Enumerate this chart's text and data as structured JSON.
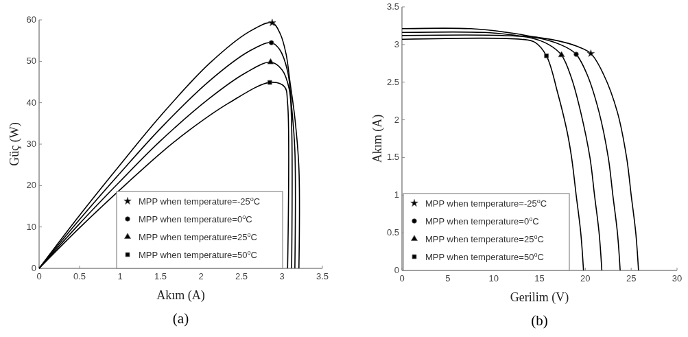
{
  "chart_data": [
    {
      "type": "line",
      "xlabel": "Akım (A)",
      "ylabel": "Güç (W)",
      "annotations": [
        "(a)"
      ],
      "xlim": [
        0,
        3.5
      ],
      "ylim": [
        0,
        60
      ],
      "xticks": [
        0,
        0.5,
        1,
        1.5,
        2,
        2.5,
        3,
        3.5
      ],
      "yticks": [
        0,
        10,
        20,
        30,
        40,
        50,
        60
      ],
      "grid": false,
      "legend": "bottom right",
      "marker": "none",
      "line_style": "solid",
      "series": [
        {
          "color": "#000000",
          "x": [
            0,
            0.5,
            1.0,
            1.5,
            2.1,
            2.6,
            2.88,
            2.98,
            3.05,
            3.1,
            3.16,
            3.21,
            3.21
          ],
          "values": [
            0,
            12.8,
            25.0,
            36.8,
            49.4,
            57.2,
            59.3,
            56.6,
            51.9,
            45.0,
            36.3,
            24.1,
            0
          ]
        },
        {
          "color": "#000000",
          "x": [
            0,
            0.5,
            1.0,
            1.5,
            2.1,
            2.6,
            2.87,
            2.97,
            3.07,
            3.12,
            3.16,
            3.16
          ],
          "values": [
            0,
            11.8,
            23.0,
            33.8,
            45.2,
            52.5,
            54.5,
            52.9,
            47.6,
            39.0,
            28.4,
            0
          ]
        },
        {
          "color": "#000000",
          "x": [
            0,
            0.5,
            1.0,
            1.5,
            2.1,
            2.55,
            2.86,
            3.0,
            3.09,
            3.12,
            3.12
          ],
          "values": [
            0,
            10.8,
            21.0,
            30.8,
            41.0,
            47.2,
            49.8,
            48.0,
            43.3,
            34.3,
            0
          ]
        },
        {
          "color": "#000000",
          "x": [
            0,
            0.5,
            1.0,
            1.5,
            1.85,
            2.35,
            2.85,
            3.03,
            3.07,
            3.07
          ],
          "values": [
            0,
            9.8,
            19.0,
            27.8,
            33.3,
            40.0,
            44.9,
            43.9,
            39.9,
            0
          ]
        },
        {
          "type": "scatter",
          "name": "MPP when temperature=-25$^{o}$C",
          "marker": "star",
          "color": "#000000",
          "x": [
            2.88
          ],
          "values": [
            59.3
          ]
        },
        {
          "type": "scatter",
          "name": "MPP when temperature=0$^{o}$C",
          "marker": "circle",
          "color": "#000000",
          "x": [
            2.87
          ],
          "values": [
            54.5
          ]
        },
        {
          "type": "scatter",
          "name": "MPP when temperature=25$^{o}$C",
          "marker": "triangle",
          "color": "#000000",
          "x": [
            2.86
          ],
          "values": [
            49.8
          ]
        },
        {
          "type": "scatter",
          "name": "MPP when temperature=50$^{o}$C",
          "marker": "square",
          "color": "#000000",
          "x": [
            2.85
          ],
          "values": [
            44.9
          ]
        }
      ]
    },
    {
      "type": "line",
      "xlabel": "Gerilim (V)",
      "ylabel": "Akım (A)",
      "annotations": [
        "(b)"
      ],
      "xlim": [
        0,
        30
      ],
      "ylim": [
        0,
        3.5
      ],
      "xticks": [
        0,
        5,
        10,
        15,
        20,
        25,
        30
      ],
      "yticks": [
        0,
        0.5,
        1,
        1.5,
        2,
        2.5,
        3,
        3.5
      ],
      "grid": false,
      "legend": "bottom left",
      "marker": "none",
      "line_style": "solid",
      "series": [
        {
          "color": "#000000",
          "x": [
            0,
            7.5,
            11.5,
            14.5,
            17,
            19,
            20.6,
            22,
            23.5,
            24.5,
            25,
            25.5,
            25.8
          ],
          "values": [
            3.21,
            3.21,
            3.16,
            3.1,
            3.05,
            2.98,
            2.88,
            2.6,
            2.1,
            1.5,
            1.0,
            0.5,
            0
          ]
        },
        {
          "color": "#000000",
          "x": [
            0,
            9,
            12.5,
            15.5,
            17.8,
            19,
            20.2,
            21.5,
            22.5,
            23,
            23.5,
            23.8
          ],
          "values": [
            3.16,
            3.16,
            3.12,
            3.07,
            2.97,
            2.87,
            2.6,
            2.1,
            1.5,
            1.0,
            0.5,
            0
          ]
        },
        {
          "color": "#000000",
          "x": [
            0,
            11,
            14,
            16,
            17.4,
            18.5,
            19.5,
            20.5,
            21,
            21.5,
            21.8
          ],
          "values": [
            3.12,
            3.12,
            3.09,
            3.0,
            2.86,
            2.55,
            2.1,
            1.5,
            1.0,
            0.5,
            0
          ]
        },
        {
          "color": "#000000",
          "x": [
            0,
            13,
            14.5,
            15.76,
            17,
            18,
            18.5,
            19,
            19.5,
            19.8
          ],
          "values": [
            3.07,
            3.07,
            3.03,
            2.85,
            2.35,
            1.85,
            1.5,
            1.0,
            0.5,
            0
          ]
        },
        {
          "type": "scatter",
          "name": "MPP when temperature=-25$^{o}$C",
          "marker": "star",
          "color": "#000000",
          "x": [
            20.6
          ],
          "values": [
            2.88
          ]
        },
        {
          "type": "scatter",
          "name": "MPP when temperature=0$^{o}$C",
          "marker": "circle",
          "color": "#000000",
          "x": [
            19.0
          ],
          "values": [
            2.87
          ]
        },
        {
          "type": "scatter",
          "name": "MPP when temperature=25$^{o}$C",
          "marker": "triangle",
          "color": "#000000",
          "x": [
            17.4
          ],
          "values": [
            2.86
          ]
        },
        {
          "type": "scatter",
          "name": "MPP when temperature=50$^{o}$C",
          "marker": "square",
          "color": "#000000",
          "x": [
            15.76
          ],
          "values": [
            2.85
          ]
        }
      ]
    }
  ]
}
